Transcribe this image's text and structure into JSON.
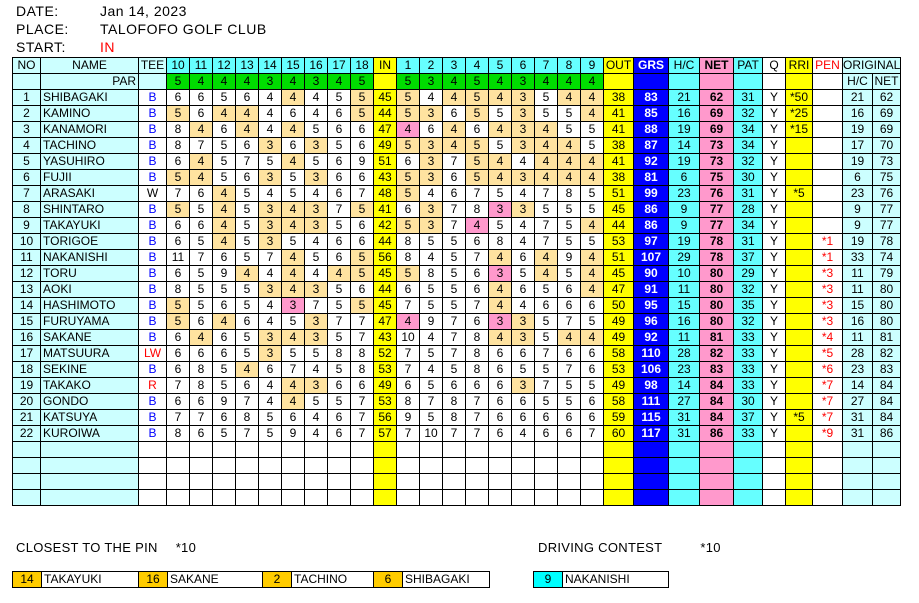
{
  "header": {
    "date_label": "DATE:",
    "date": "Jan 14, 2023",
    "place_label": "PLACE:",
    "place": "TALOFOFO GOLF CLUB",
    "start_label": "START:",
    "start": "IN"
  },
  "columns": {
    "no": "NO",
    "name": "NAME",
    "par": "PAR",
    "tee": "TEE",
    "back_holes": [
      "10",
      "11",
      "12",
      "13",
      "14",
      "15",
      "16",
      "17",
      "18"
    ],
    "in": "IN",
    "front_holes": [
      "1",
      "2",
      "3",
      "4",
      "5",
      "6",
      "7",
      "8",
      "9"
    ],
    "out": "OUT",
    "grs": "GRS",
    "hc": "H/C",
    "net": "NET",
    "pat": "PAT",
    "q": "Q",
    "rri": "RRI",
    "pen": "PEN",
    "original": "ORIGINAL",
    "orig_hc": "H/C",
    "orig_net": "NET"
  },
  "par_back": [
    5,
    4,
    4,
    4,
    3,
    4,
    3,
    4,
    5
  ],
  "par_front": [
    5,
    3,
    4,
    5,
    4,
    3,
    4,
    4,
    4
  ],
  "colors": {
    "par": "#ffe3a0",
    "birdie": "#ff99cc",
    "header": "#66ffff",
    "light": "#ccffff",
    "par_row": "#00dd00",
    "total": "#ffff00",
    "gross": "#0000ff",
    "net": "#ff99cc",
    "tee_blue": "#0000ff",
    "tee_red": "#ff0000",
    "pen": "#ff0000"
  },
  "players": [
    {
      "no": "1",
      "name": "SHIBAGAKI",
      "tee": "B",
      "tee_color": "blue",
      "back": [
        6,
        6,
        5,
        6,
        4,
        4,
        4,
        5,
        5
      ],
      "in": "45",
      "front": [
        5,
        4,
        4,
        5,
        4,
        3,
        5,
        4,
        4
      ],
      "out": "38",
      "grs": "83",
      "hc": "21",
      "net": "62",
      "pat": "31",
      "q": "Y",
      "rri": "*50",
      "pen": "",
      "orig_hc": "21",
      "orig_net": "62"
    },
    {
      "no": "2",
      "name": "KAMINO",
      "tee": "B",
      "tee_color": "blue",
      "back": [
        5,
        6,
        4,
        4,
        4,
        6,
        4,
        6,
        5
      ],
      "in": "44",
      "front": [
        5,
        3,
        6,
        5,
        5,
        3,
        5,
        5,
        4
      ],
      "out": "41",
      "grs": "85",
      "hc": "16",
      "net": "69",
      "pat": "32",
      "q": "Y",
      "rri": "*25",
      "pen": "",
      "orig_hc": "16",
      "orig_net": "69"
    },
    {
      "no": "3",
      "name": "KANAMORI",
      "tee": "B",
      "tee_color": "blue",
      "back": [
        8,
        4,
        6,
        4,
        4,
        4,
        5,
        6,
        6
      ],
      "in": "47",
      "front": [
        4,
        6,
        4,
        6,
        4,
        3,
        4,
        5,
        5
      ],
      "out": "41",
      "grs": "88",
      "hc": "19",
      "net": "69",
      "pat": "34",
      "q": "Y",
      "rri": "*15",
      "pen": "",
      "orig_hc": "19",
      "orig_net": "69"
    },
    {
      "no": "4",
      "name": "TACHINO",
      "tee": "B",
      "tee_color": "blue",
      "back": [
        8,
        7,
        5,
        6,
        3,
        6,
        3,
        5,
        6
      ],
      "in": "49",
      "front": [
        5,
        3,
        4,
        5,
        5,
        3,
        4,
        4,
        5
      ],
      "out": "38",
      "grs": "87",
      "hc": "14",
      "net": "73",
      "pat": "34",
      "q": "Y",
      "rri": "",
      "pen": "",
      "orig_hc": "17",
      "orig_net": "70"
    },
    {
      "no": "5",
      "name": "YASUHIRO",
      "tee": "B",
      "tee_color": "blue",
      "back": [
        6,
        4,
        5,
        7,
        5,
        4,
        5,
        6,
        9
      ],
      "in": "51",
      "front": [
        6,
        3,
        7,
        5,
        4,
        4,
        4,
        4,
        4
      ],
      "out": "41",
      "grs": "92",
      "hc": "19",
      "net": "73",
      "pat": "32",
      "q": "Y",
      "rri": "",
      "pen": "",
      "orig_hc": "19",
      "orig_net": "73"
    },
    {
      "no": "6",
      "name": "FUJII",
      "tee": "B",
      "tee_color": "blue",
      "back": [
        5,
        4,
        5,
        6,
        3,
        5,
        3,
        6,
        6
      ],
      "in": "43",
      "front": [
        5,
        3,
        6,
        5,
        4,
        3,
        4,
        4,
        4
      ],
      "out": "38",
      "grs": "81",
      "hc": "6",
      "net": "75",
      "pat": "30",
      "q": "Y",
      "rri": "",
      "pen": "",
      "orig_hc": "6",
      "orig_net": "75"
    },
    {
      "no": "7",
      "name": "ARASAKI",
      "tee": "W",
      "tee_color": "black",
      "back": [
        7,
        6,
        4,
        5,
        4,
        5,
        4,
        6,
        7
      ],
      "in": "48",
      "front": [
        5,
        4,
        6,
        7,
        5,
        4,
        7,
        8,
        5
      ],
      "out": "51",
      "grs": "99",
      "hc": "23",
      "net": "76",
      "pat": "31",
      "q": "Y",
      "rri": "*5",
      "pen": "",
      "orig_hc": "23",
      "orig_net": "76"
    },
    {
      "no": "8",
      "name": "SHINTARO",
      "tee": "B",
      "tee_color": "blue",
      "back": [
        5,
        5,
        4,
        5,
        3,
        4,
        3,
        7,
        5
      ],
      "in": "41",
      "front": [
        6,
        3,
        7,
        8,
        3,
        3,
        5,
        5,
        5
      ],
      "out": "45",
      "grs": "86",
      "hc": "9",
      "net": "77",
      "pat": "28",
      "q": "Y",
      "rri": "",
      "pen": "",
      "orig_hc": "9",
      "orig_net": "77"
    },
    {
      "no": "9",
      "name": "TAKAYUKI",
      "tee": "B",
      "tee_color": "blue",
      "back": [
        6,
        6,
        4,
        5,
        3,
        4,
        3,
        5,
        6
      ],
      "in": "42",
      "front": [
        5,
        3,
        7,
        4,
        5,
        4,
        7,
        5,
        4
      ],
      "out": "44",
      "grs": "86",
      "hc": "9",
      "net": "77",
      "pat": "34",
      "q": "Y",
      "rri": "",
      "pen": "",
      "orig_hc": "9",
      "orig_net": "77"
    },
    {
      "no": "10",
      "name": "TORIGOE",
      "tee": "B",
      "tee_color": "blue",
      "back": [
        6,
        5,
        4,
        5,
        3,
        5,
        4,
        6,
        6
      ],
      "in": "44",
      "front": [
        8,
        5,
        5,
        6,
        8,
        4,
        7,
        5,
        5
      ],
      "out": "53",
      "grs": "97",
      "hc": "19",
      "net": "78",
      "pat": "31",
      "q": "Y",
      "rri": "",
      "pen": "*1",
      "orig_hc": "19",
      "orig_net": "78"
    },
    {
      "no": "11",
      "name": "NAKANISHI",
      "tee": "B",
      "tee_color": "blue",
      "back": [
        11,
        7,
        6,
        5,
        7,
        4,
        5,
        6,
        5
      ],
      "in": "56",
      "front": [
        8,
        4,
        5,
        7,
        4,
        6,
        4,
        9,
        4
      ],
      "out": "51",
      "grs": "107",
      "hc": "29",
      "net": "78",
      "pat": "37",
      "q": "Y",
      "rri": "",
      "pen": "*1",
      "orig_hc": "33",
      "orig_net": "74"
    },
    {
      "no": "12",
      "name": "TORU",
      "tee": "B",
      "tee_color": "blue",
      "back": [
        6,
        5,
        9,
        4,
        4,
        4,
        4,
        4,
        5
      ],
      "in": "45",
      "front": [
        5,
        8,
        5,
        6,
        3,
        5,
        4,
        5,
        4
      ],
      "out": "45",
      "grs": "90",
      "hc": "10",
      "net": "80",
      "pat": "29",
      "q": "Y",
      "rri": "",
      "pen": "*3",
      "orig_hc": "11",
      "orig_net": "79"
    },
    {
      "no": "13",
      "name": "AOKI",
      "tee": "B",
      "tee_color": "blue",
      "back": [
        8,
        5,
        5,
        5,
        3,
        4,
        3,
        5,
        6
      ],
      "in": "44",
      "front": [
        6,
        5,
        5,
        6,
        4,
        6,
        5,
        6,
        4
      ],
      "out": "47",
      "grs": "91",
      "hc": "11",
      "net": "80",
      "pat": "32",
      "q": "Y",
      "rri": "",
      "pen": "*3",
      "orig_hc": "11",
      "orig_net": "80"
    },
    {
      "no": "14",
      "name": "HASHIMOTO",
      "tee": "B",
      "tee_color": "blue",
      "back": [
        5,
        5,
        6,
        5,
        4,
        3,
        7,
        5,
        5
      ],
      "in": "45",
      "front": [
        7,
        5,
        5,
        7,
        4,
        4,
        6,
        6,
        6
      ],
      "out": "50",
      "grs": "95",
      "hc": "15",
      "net": "80",
      "pat": "35",
      "q": "Y",
      "rri": "",
      "pen": "*3",
      "orig_hc": "15",
      "orig_net": "80"
    },
    {
      "no": "15",
      "name": "FURUYAMA",
      "tee": "B",
      "tee_color": "blue",
      "back": [
        5,
        6,
        4,
        6,
        4,
        5,
        3,
        7,
        7
      ],
      "in": "47",
      "front": [
        4,
        9,
        7,
        6,
        3,
        3,
        5,
        7,
        5
      ],
      "out": "49",
      "grs": "96",
      "hc": "16",
      "net": "80",
      "pat": "32",
      "q": "Y",
      "rri": "",
      "pen": "*3",
      "orig_hc": "16",
      "orig_net": "80"
    },
    {
      "no": "16",
      "name": "SAKANE",
      "tee": "B",
      "tee_color": "blue",
      "back": [
        6,
        4,
        6,
        5,
        3,
        4,
        3,
        5,
        7
      ],
      "in": "43",
      "front": [
        10,
        4,
        7,
        8,
        4,
        3,
        5,
        4,
        4
      ],
      "out": "49",
      "grs": "92",
      "hc": "11",
      "net": "81",
      "pat": "33",
      "q": "Y",
      "rri": "",
      "pen": "*4",
      "orig_hc": "11",
      "orig_net": "81"
    },
    {
      "no": "17",
      "name": "MATSUURA",
      "tee": "LW",
      "tee_color": "red",
      "back": [
        6,
        6,
        6,
        5,
        3,
        5,
        5,
        8,
        8
      ],
      "in": "52",
      "front": [
        7,
        5,
        7,
        8,
        6,
        6,
        7,
        6,
        6
      ],
      "out": "58",
      "grs": "110",
      "hc": "28",
      "net": "82",
      "pat": "33",
      "q": "Y",
      "rri": "",
      "pen": "*5",
      "orig_hc": "28",
      "orig_net": "82"
    },
    {
      "no": "18",
      "name": "SEKINE",
      "tee": "B",
      "tee_color": "blue",
      "back": [
        6,
        8,
        5,
        4,
        6,
        7,
        4,
        5,
        8
      ],
      "in": "53",
      "front": [
        7,
        4,
        5,
        8,
        6,
        5,
        5,
        7,
        6
      ],
      "out": "53",
      "grs": "106",
      "hc": "23",
      "net": "83",
      "pat": "33",
      "q": "Y",
      "rri": "",
      "pen": "*6",
      "orig_hc": "23",
      "orig_net": "83"
    },
    {
      "no": "19",
      "name": "TAKAKO",
      "tee": "R",
      "tee_color": "red",
      "back": [
        7,
        8,
        5,
        6,
        4,
        4,
        3,
        6,
        6
      ],
      "in": "49",
      "front": [
        6,
        5,
        6,
        6,
        6,
        3,
        7,
        5,
        5
      ],
      "out": "49",
      "grs": "98",
      "hc": "14",
      "net": "84",
      "pat": "33",
      "q": "Y",
      "rri": "",
      "pen": "*7",
      "orig_hc": "14",
      "orig_net": "84"
    },
    {
      "no": "20",
      "name": "GONDO",
      "tee": "B",
      "tee_color": "blue",
      "back": [
        6,
        6,
        9,
        7,
        4,
        4,
        5,
        5,
        7
      ],
      "in": "53",
      "front": [
        8,
        7,
        8,
        7,
        6,
        6,
        5,
        5,
        6
      ],
      "out": "58",
      "grs": "111",
      "hc": "27",
      "net": "84",
      "pat": "30",
      "q": "Y",
      "rri": "",
      "pen": "*7",
      "orig_hc": "27",
      "orig_net": "84"
    },
    {
      "no": "21",
      "name": "KATSUYA",
      "tee": "B",
      "tee_color": "blue",
      "back": [
        7,
        7,
        6,
        8,
        5,
        6,
        4,
        6,
        7
      ],
      "in": "56",
      "front": [
        9,
        5,
        8,
        7,
        6,
        6,
        6,
        6,
        6
      ],
      "out": "59",
      "grs": "115",
      "hc": "31",
      "net": "84",
      "pat": "37",
      "q": "Y",
      "rri": "*5",
      "pen": "*7",
      "orig_hc": "31",
      "orig_net": "84"
    },
    {
      "no": "22",
      "name": "KUROIWA",
      "tee": "B",
      "tee_color": "blue",
      "back": [
        8,
        6,
        5,
        7,
        5,
        9,
        4,
        6,
        7
      ],
      "in": "57",
      "front": [
        7,
        10,
        7,
        7,
        6,
        4,
        6,
        6,
        7
      ],
      "out": "60",
      "grs": "117",
      "hc": "31",
      "net": "86",
      "pat": "33",
      "q": "Y",
      "rri": "",
      "pen": "*9",
      "orig_hc": "31",
      "orig_net": "86"
    }
  ],
  "closest_to_pin": {
    "title": "CLOSEST TO THE PIN",
    "points": "*10",
    "winners": [
      {
        "hole": "14",
        "name": "TAKAYUKI"
      },
      {
        "hole": "16",
        "name": "SAKANE"
      },
      {
        "hole": "2",
        "name": "TACHINO"
      },
      {
        "hole": "6",
        "name": "SHIBAGAKI"
      }
    ]
  },
  "driving_contest": {
    "title": "DRIVING CONTEST",
    "points": "*10",
    "winners": [
      {
        "hole": "9",
        "name": "NAKANISHI"
      }
    ]
  }
}
